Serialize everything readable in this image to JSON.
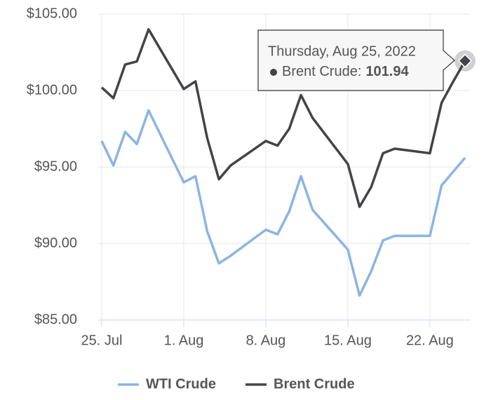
{
  "chart_data": {
    "type": "line",
    "x": [
      "2022-07-25",
      "2022-07-26",
      "2022-07-27",
      "2022-07-28",
      "2022-07-29",
      "2022-08-01",
      "2022-08-02",
      "2022-08-03",
      "2022-08-04",
      "2022-08-05",
      "2022-08-08",
      "2022-08-09",
      "2022-08-10",
      "2022-08-11",
      "2022-08-12",
      "2022-08-15",
      "2022-08-16",
      "2022-08-17",
      "2022-08-18",
      "2022-08-19",
      "2022-08-22",
      "2022-08-23",
      "2022-08-24",
      "2022-08-25"
    ],
    "series": [
      {
        "name": "WTI Crude",
        "color": "#8ab4e6",
        "values": [
          96.7,
          95.1,
          97.3,
          96.5,
          98.7,
          94.0,
          94.4,
          90.8,
          88.7,
          89.2,
          90.9,
          90.6,
          92.1,
          94.4,
          92.2,
          89.6,
          86.6,
          88.2,
          90.2,
          90.5,
          90.5,
          93.8,
          94.7,
          95.6
        ]
      },
      {
        "name": "Brent Crude",
        "color": "#434348",
        "values": [
          100.2,
          99.5,
          101.7,
          101.9,
          104.0,
          100.1,
          100.6,
          96.9,
          94.2,
          95.1,
          96.7,
          96.4,
          97.5,
          99.7,
          98.2,
          95.2,
          92.4,
          93.7,
          95.9,
          96.2,
          95.9,
          99.2,
          100.6,
          101.94
        ]
      }
    ],
    "xlim": [
      "2022-07-25",
      "2022-08-25"
    ],
    "xticks": [
      {
        "value": "2022-07-25",
        "label": "25. Jul"
      },
      {
        "value": "2022-08-01",
        "label": "1. Aug"
      },
      {
        "value": "2022-08-08",
        "label": "8. Aug"
      },
      {
        "value": "2022-08-15",
        "label": "15. Aug"
      },
      {
        "value": "2022-08-22",
        "label": "22. Aug"
      }
    ],
    "ylim": [
      85,
      105
    ],
    "yticks": [
      {
        "value": 85,
        "label": "$85.00"
      },
      {
        "value": 90,
        "label": "$90.00"
      },
      {
        "value": 95,
        "label": "$95.00"
      },
      {
        "value": 100,
        "label": "$100.00"
      },
      {
        "value": 105,
        "label": "$105.00"
      }
    ],
    "grid": true,
    "legend": "bottom",
    "tooltip": {
      "title": "Thursday, Aug 25, 2022",
      "series_label": "Brent Crude:"
    }
  }
}
